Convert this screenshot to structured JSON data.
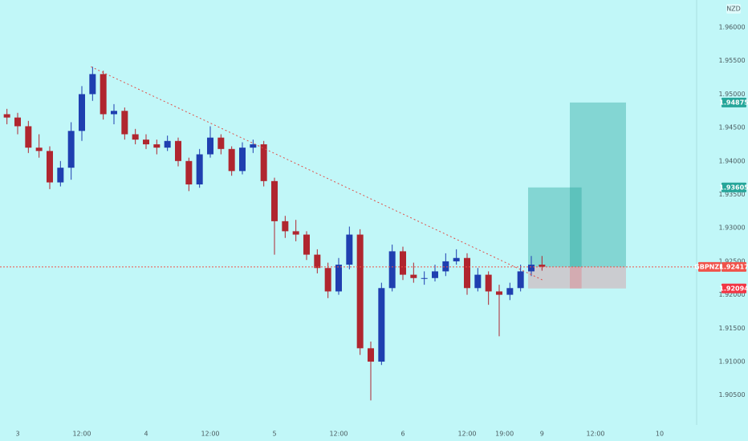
{
  "chart_data": {
    "type": "candlestick",
    "currency": "NZD",
    "symbol": "GBPNZD",
    "up_color": "#1f3fb0",
    "down_color": "#b0262f",
    "x": [
      -2,
      0,
      2,
      4,
      6,
      8,
      10,
      12,
      14,
      16,
      18,
      20,
      22,
      24,
      26,
      28,
      30,
      32,
      34,
      36,
      38,
      40,
      42,
      44,
      46,
      48,
      50,
      52,
      54,
      56,
      58,
      60,
      62,
      64,
      66,
      68,
      70,
      72,
      74,
      76,
      78,
      80,
      82,
      84,
      86,
      88,
      90,
      92,
      94,
      96,
      98
    ],
    "open": [
      1.947,
      1.9465,
      1.9452,
      1.942,
      1.9415,
      1.9368,
      1.939,
      1.9445,
      1.95,
      1.953,
      1.947,
      1.9475,
      1.944,
      1.9432,
      1.9425,
      1.942,
      1.943,
      1.94,
      1.9365,
      1.941,
      1.9435,
      1.9418,
      1.9385,
      1.942,
      1.9425,
      1.937,
      1.931,
      1.9295,
      1.929,
      1.926,
      1.924,
      1.9205,
      1.9245,
      1.929,
      1.912,
      1.91,
      1.921,
      1.9265,
      1.923,
      1.9225,
      1.9225,
      1.9235,
      1.925,
      1.9255,
      1.921,
      1.923,
      1.9205,
      1.92,
      1.921,
      1.9235,
      1.9245
    ],
    "high": [
      1.9478,
      1.9472,
      1.946,
      1.944,
      1.9422,
      1.94,
      1.9458,
      1.9512,
      1.9541,
      1.9535,
      1.9485,
      1.948,
      1.9448,
      1.944,
      1.9432,
      1.9438,
      1.9435,
      1.9405,
      1.9418,
      1.9452,
      1.944,
      1.9422,
      1.9428,
      1.9432,
      1.943,
      1.9375,
      1.9318,
      1.9312,
      1.9295,
      1.9268,
      1.9248,
      1.9255,
      1.9302,
      1.9298,
      1.913,
      1.9218,
      1.9275,
      1.9272,
      1.9248,
      1.9235,
      1.9245,
      1.9262,
      1.9268,
      1.9262,
      1.924,
      1.9235,
      1.9215,
      1.9218,
      1.9245,
      1.9258,
      1.9258
    ],
    "low": [
      1.9455,
      1.944,
      1.9412,
      1.9405,
      1.9358,
      1.9362,
      1.9372,
      1.943,
      1.949,
      1.9462,
      1.9455,
      1.9432,
      1.9425,
      1.9418,
      1.941,
      1.9415,
      1.9392,
      1.9355,
      1.936,
      1.9405,
      1.941,
      1.9378,
      1.938,
      1.9412,
      1.9362,
      1.926,
      1.9285,
      1.928,
      1.9252,
      1.9232,
      1.9195,
      1.92,
      1.9238,
      1.911,
      1.9042,
      1.9095,
      1.9205,
      1.9222,
      1.9218,
      1.9215,
      1.922,
      1.9228,
      1.9245,
      1.92,
      1.9205,
      1.9185,
      1.9138,
      1.9192,
      1.9205,
      1.9228,
      1.9236
    ],
    "close": [
      1.9465,
      1.9452,
      1.942,
      1.9415,
      1.9368,
      1.939,
      1.9445,
      1.95,
      1.953,
      1.947,
      1.9475,
      1.944,
      1.9432,
      1.9425,
      1.942,
      1.943,
      1.94,
      1.9365,
      1.941,
      1.9435,
      1.9418,
      1.9385,
      1.942,
      1.9425,
      1.937,
      1.931,
      1.9295,
      1.929,
      1.926,
      1.924,
      1.9205,
      1.9245,
      1.929,
      1.912,
      1.91,
      1.921,
      1.9265,
      1.923,
      1.9225,
      1.9225,
      1.9235,
      1.925,
      1.9255,
      1.921,
      1.923,
      1.9205,
      1.92,
      1.921,
      1.9235,
      1.9245,
      1.9242
    ],
    "xlim": [
      -3.3,
      126.9
    ],
    "xticks": [
      {
        "value": 0,
        "label": "3"
      },
      {
        "value": 12,
        "label": "12:00"
      },
      {
        "value": 24,
        "label": "4"
      },
      {
        "value": 36,
        "label": "12:00"
      },
      {
        "value": 48,
        "label": "5"
      },
      {
        "value": 60,
        "label": "12:00"
      },
      {
        "value": 72,
        "label": "6"
      },
      {
        "value": 84,
        "label": "12:00"
      },
      {
        "value": 91,
        "label": "19:00"
      },
      {
        "value": 98,
        "label": "9"
      },
      {
        "value": 108,
        "label": "12:00"
      },
      {
        "value": 120,
        "label": "10"
      }
    ],
    "ylim": [
      1.90053,
      1.96408
    ],
    "yticks": [
      {
        "value": 1.905,
        "label": "1.90500"
      },
      {
        "value": 1.91,
        "label": "1.91000"
      },
      {
        "value": 1.915,
        "label": "1.91500"
      },
      {
        "value": 1.92,
        "label": "1.92000"
      },
      {
        "value": 1.925,
        "label": "1.92500"
      },
      {
        "value": 1.93,
        "label": "1.93000"
      },
      {
        "value": 1.935,
        "label": "1.93500"
      },
      {
        "value": 1.94,
        "label": "1.94000"
      },
      {
        "value": 1.945,
        "label": "1.94500"
      },
      {
        "value": 1.95,
        "label": "1.95000"
      },
      {
        "value": 1.955,
        "label": "1.95500"
      },
      {
        "value": 1.96,
        "label": "1.96000"
      }
    ],
    "trendline": {
      "x": [
        13.7,
        98.4
      ],
      "y": [
        1.9541,
        1.9221
      ],
      "color": "#e0504a"
    },
    "last_price": {
      "value": 1.92417,
      "label": "1.92417",
      "color": "#f0524a"
    },
    "target_color": "#26a69a",
    "stop_color": "#f23645",
    "positions": [
      {
        "x": [
          95.4,
          105.4
        ],
        "entry": 1.92417,
        "target": {
          "value": 1.93605,
          "label": "1.93605"
        },
        "stop": {
          "value": 1.92094,
          "label": "1.92094"
        }
      },
      {
        "x": [
          103.2,
          113.7
        ],
        "entry": 1.92417,
        "target": {
          "value": 1.94875,
          "label": "1.94875"
        },
        "stop": 1.92094
      }
    ]
  }
}
